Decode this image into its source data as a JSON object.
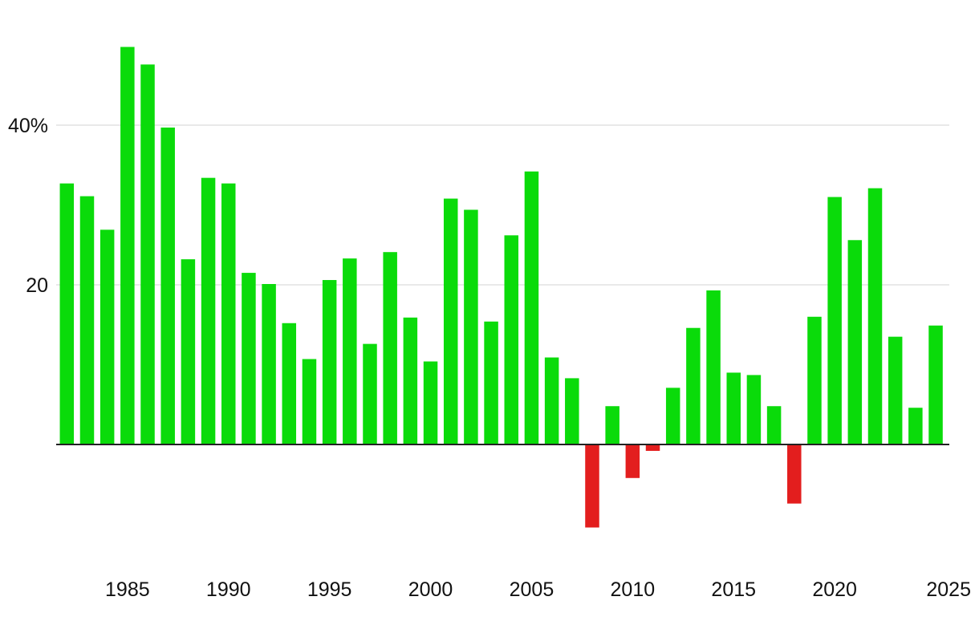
{
  "chart_data": {
    "type": "bar",
    "title": "",
    "xlabel": "",
    "ylabel": "",
    "x": [
      1982,
      1983,
      1984,
      1985,
      1986,
      1987,
      1988,
      1989,
      1990,
      1991,
      1992,
      1993,
      1994,
      1995,
      1996,
      1997,
      1998,
      1999,
      2000,
      2001,
      2002,
      2003,
      2004,
      2005,
      2006,
      2007,
      2008,
      2009,
      2010,
      2011,
      2012,
      2013,
      2014,
      2015,
      2016,
      2017,
      2018,
      2019,
      2020,
      2021,
      2022,
      2023,
      2024,
      2025
    ],
    "values": [
      32.7,
      31.1,
      26.9,
      49.8,
      47.6,
      39.7,
      23.2,
      33.4,
      32.7,
      21.5,
      20.1,
      15.2,
      10.7,
      20.6,
      23.3,
      12.6,
      24.1,
      15.9,
      10.4,
      30.8,
      29.4,
      15.4,
      26.2,
      34.2,
      10.9,
      8.3,
      -10.4,
      4.8,
      -4.2,
      -0.8,
      7.1,
      14.6,
      19.3,
      9.0,
      8.7,
      4.8,
      -7.4,
      16.0,
      31.0,
      25.6,
      32.1,
      13.5,
      4.6,
      14.9
    ],
    "ylim": [
      -16,
      50
    ],
    "yticks": [
      {
        "value": 40,
        "label": "40%"
      },
      {
        "value": 20,
        "label": "20"
      }
    ],
    "xticks": [
      {
        "value": 1985,
        "label": "1985"
      },
      {
        "value": 1990,
        "label": "1990"
      },
      {
        "value": 1995,
        "label": "1995"
      },
      {
        "value": 2000,
        "label": "2000"
      },
      {
        "value": 2005,
        "label": "2005"
      },
      {
        "value": 2010,
        "label": "2010"
      },
      {
        "value": 2015,
        "label": "2015"
      },
      {
        "value": 2020,
        "label": "2020"
      },
      {
        "value": 2025,
        "label": "2025"
      }
    ],
    "grid": true,
    "colors": {
      "positive": "#0adb0a",
      "negative": "#e31e1e",
      "grid": "#e2e2e2",
      "baseline": "#222222"
    }
  }
}
